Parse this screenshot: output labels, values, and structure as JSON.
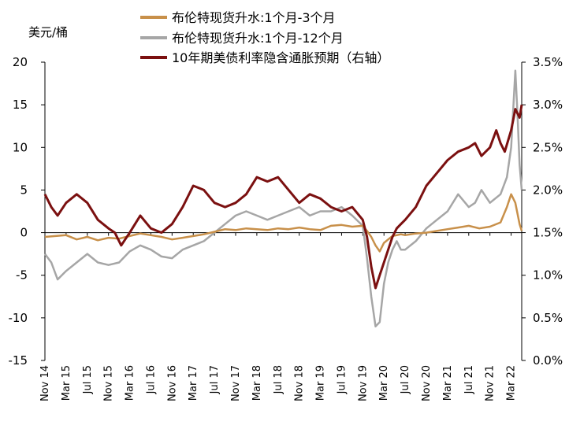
{
  "chart_data": {
    "type": "line",
    "title": "",
    "left_axis_unit": "美元/桶",
    "left_axis": {
      "ylim": [
        -15,
        20
      ],
      "ticks": [
        -15,
        -10,
        -5,
        0,
        5,
        10,
        15,
        20
      ]
    },
    "right_axis": {
      "ylim": [
        0.0,
        3.5
      ],
      "ticks": [
        "0.0%",
        "0.5%",
        "1.0%",
        "1.5%",
        "2.0%",
        "2.5%",
        "3.0%",
        "3.5%"
      ]
    },
    "x_ticks": [
      "Nov 14",
      "Mar 15",
      "Jul 15",
      "Nov 15",
      "Mar 16",
      "Jul 16",
      "Nov 16",
      "Mar 17",
      "Jul 17",
      "Nov 17",
      "Mar 18",
      "Jul 18",
      "Nov 18",
      "Mar 19",
      "Jul 19",
      "Nov 19",
      "Mar 20",
      "Jul 20",
      "Nov 20",
      "Mar 21",
      "Jul 21",
      "Nov 21",
      "Mar 22"
    ],
    "x_range": [
      0,
      22.5
    ],
    "legend": {
      "position": "top-center"
    },
    "colors": {
      "series1": "#c8904a",
      "series2": "#a6a6a6",
      "series3": "#7b1010"
    },
    "series": [
      {
        "name": "布伦特现货升水:1个月-3个月",
        "axis": "left",
        "color": "#c8904a",
        "x": [
          0,
          0.5,
          1,
          1.5,
          2,
          2.5,
          3,
          3.5,
          4,
          4.5,
          5,
          5.5,
          6,
          6.5,
          7,
          7.5,
          8,
          8.5,
          9,
          9.5,
          10,
          10.5,
          11,
          11.5,
          12,
          12.5,
          13,
          13.5,
          14,
          14.5,
          15,
          15.2,
          15.4,
          15.6,
          15.8,
          16,
          16.2,
          16.4,
          16.6,
          16.8,
          17,
          17.5,
          18,
          18.5,
          19,
          19.5,
          20,
          20.5,
          21,
          21.5,
          21.8,
          22,
          22.2,
          22.4,
          22.5
        ],
        "values": [
          -0.5,
          -0.4,
          -0.3,
          -0.8,
          -0.5,
          -0.9,
          -0.6,
          -0.7,
          -0.4,
          -0.1,
          -0.3,
          -0.5,
          -0.8,
          -0.6,
          -0.4,
          -0.2,
          0.1,
          0.4,
          0.3,
          0.5,
          0.4,
          0.3,
          0.5,
          0.4,
          0.6,
          0.4,
          0.3,
          0.8,
          0.9,
          0.7,
          0.8,
          0.2,
          -0.5,
          -1.5,
          -2.2,
          -1.2,
          -0.8,
          -0.4,
          -0.3,
          -0.2,
          -0.3,
          -0.1,
          0.0,
          0.2,
          0.4,
          0.6,
          0.8,
          0.5,
          0.7,
          1.2,
          3.0,
          4.5,
          3.5,
          1.0,
          0.2
        ]
      },
      {
        "name": "布伦特现货升水:1个月-12个月",
        "axis": "left",
        "color": "#a6a6a6",
        "x": [
          0,
          0.3,
          0.6,
          1,
          1.5,
          2,
          2.5,
          3,
          3.5,
          4,
          4.5,
          5,
          5.5,
          6,
          6.5,
          7,
          7.5,
          8,
          8.5,
          9,
          9.5,
          10,
          10.5,
          11,
          11.5,
          12,
          12.5,
          13,
          13.5,
          14,
          14.5,
          15,
          15.2,
          15.4,
          15.6,
          15.8,
          16,
          16.2,
          16.4,
          16.6,
          16.8,
          17,
          17.5,
          18,
          18.5,
          19,
          19.5,
          20,
          20.3,
          20.6,
          21,
          21.5,
          21.8,
          22,
          22.2,
          22.3,
          22.4,
          22.5
        ],
        "values": [
          -2.5,
          -3.5,
          -5.5,
          -4.5,
          -3.5,
          -2.5,
          -3.5,
          -3.8,
          -3.5,
          -2.2,
          -1.5,
          -2.0,
          -2.8,
          -3.0,
          -2.0,
          -1.5,
          -1.0,
          0.0,
          1.0,
          2.0,
          2.5,
          2.0,
          1.5,
          2.0,
          2.5,
          3.0,
          2.0,
          2.5,
          2.5,
          3.0,
          2.0,
          0.8,
          -3.0,
          -7.5,
          -11.0,
          -10.5,
          -6.0,
          -3.5,
          -2.0,
          -1.0,
          -2.0,
          -2.0,
          -1.0,
          0.5,
          1.5,
          2.5,
          4.5,
          3.0,
          3.5,
          5.0,
          3.5,
          4.5,
          6.5,
          10.0,
          19.0,
          14.0,
          8.0,
          5.0
        ]
      },
      {
        "name": "10年期美债利率隐含通胀预期（右轴）",
        "axis": "right",
        "color": "#7b1010",
        "x": [
          0,
          0.3,
          0.6,
          1,
          1.5,
          2,
          2.5,
          3,
          3.3,
          3.6,
          4,
          4.5,
          5,
          5.5,
          6,
          6.5,
          7,
          7.5,
          8,
          8.5,
          9,
          9.5,
          10,
          10.5,
          11,
          11.5,
          12,
          12.5,
          13,
          13.5,
          14,
          14.5,
          15,
          15.2,
          15.4,
          15.6,
          15.8,
          16,
          16.2,
          16.4,
          16.6,
          16.8,
          17,
          17.5,
          18,
          18.5,
          19,
          19.5,
          20,
          20.3,
          20.6,
          21,
          21.3,
          21.5,
          21.7,
          22,
          22.2,
          22.4,
          22.5
        ],
        "values": [
          1.95,
          1.8,
          1.7,
          1.85,
          1.95,
          1.85,
          1.65,
          1.55,
          1.5,
          1.35,
          1.5,
          1.7,
          1.55,
          1.5,
          1.6,
          1.8,
          2.05,
          2.0,
          1.85,
          1.8,
          1.85,
          1.95,
          2.15,
          2.1,
          2.15,
          2.0,
          1.85,
          1.95,
          1.9,
          1.8,
          1.75,
          1.8,
          1.65,
          1.45,
          1.1,
          0.85,
          1.0,
          1.15,
          1.3,
          1.45,
          1.55,
          1.6,
          1.65,
          1.8,
          2.05,
          2.2,
          2.35,
          2.45,
          2.5,
          2.55,
          2.4,
          2.5,
          2.7,
          2.55,
          2.45,
          2.7,
          2.95,
          2.85,
          3.0
        ]
      }
    ]
  }
}
